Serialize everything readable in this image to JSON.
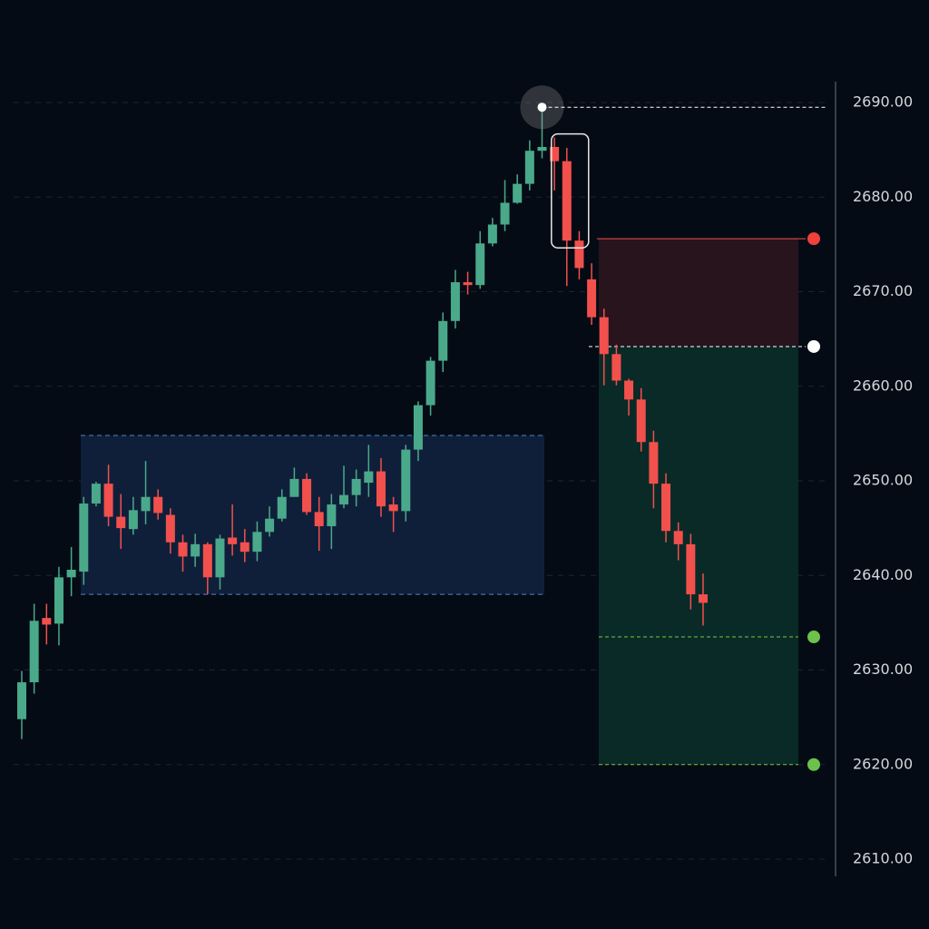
{
  "chart_data": {
    "type": "candlestick",
    "up_color": "#4aa98a",
    "down_color": "#f2504d",
    "open": [
      2624.8,
      2628.7,
      2635.5,
      2634.9,
      2639.8,
      2640.4,
      2647.6,
      2649.7,
      2646.2,
      2644.9,
      2646.8,
      2648.3,
      2646.4,
      2643.5,
      2642.0,
      2643.3,
      2639.8,
      2644.0,
      2643.5,
      2642.5,
      2644.6,
      2646.0,
      2648.3,
      2650.2,
      2646.7,
      2645.2,
      2647.5,
      2648.5,
      2649.8,
      2651.0,
      2647.5,
      2646.8,
      2653.3,
      2658.0,
      2662.7,
      2666.9,
      2671.0,
      2670.7,
      2675.1,
      2677.1,
      2679.4,
      2681.4,
      2684.9,
      2685.3,
      2683.8,
      2675.4,
      2671.3,
      2667.3,
      2663.4,
      2660.6,
      2658.6,
      2654.1,
      2649.7,
      2644.7,
      2643.3,
      2638.0
    ],
    "high": [
      2629.9,
      2637.0,
      2637.0,
      2640.9,
      2643.0,
      2648.3,
      2649.9,
      2651.7,
      2648.6,
      2648.3,
      2652.1,
      2649.1,
      2647.1,
      2644.3,
      2644.4,
      2643.5,
      2644.3,
      2647.5,
      2644.9,
      2645.7,
      2647.3,
      2649.1,
      2651.4,
      2650.8,
      2648.3,
      2648.6,
      2651.6,
      2651.2,
      2653.8,
      2652.4,
      2648.3,
      2653.8,
      2658.4,
      2663.1,
      2667.8,
      2672.3,
      2672.1,
      2676.4,
      2677.8,
      2681.8,
      2682.4,
      2686.0,
      2689.5,
      2686.3,
      2685.2,
      2676.4,
      2673.0,
      2668.2,
      2664.4,
      2660.8,
      2659.8,
      2655.3,
      2650.8,
      2645.6,
      2644.4,
      2640.2
    ],
    "low": [
      2622.7,
      2627.5,
      2632.7,
      2632.6,
      2637.8,
      2639.0,
      2647.3,
      2645.2,
      2642.8,
      2644.3,
      2645.4,
      2645.9,
      2642.3,
      2640.4,
      2640.9,
      2638.0,
      2638.5,
      2642.1,
      2641.4,
      2641.5,
      2644.1,
      2645.7,
      2648.3,
      2646.4,
      2642.6,
      2642.8,
      2647.1,
      2647.3,
      2648.3,
      2646.2,
      2644.6,
      2645.7,
      2652.1,
      2656.9,
      2661.5,
      2666.1,
      2669.7,
      2670.3,
      2674.8,
      2676.4,
      2679.3,
      2680.7,
      2684.1,
      2680.7,
      2670.6,
      2671.3,
      2666.5,
      2660.1,
      2660.1,
      2656.9,
      2653.1,
      2647.1,
      2643.5,
      2641.6,
      2636.4,
      2634.7
    ],
    "close": [
      2628.7,
      2635.2,
      2634.8,
      2639.8,
      2640.6,
      2647.6,
      2649.7,
      2646.2,
      2645.0,
      2646.9,
      2648.3,
      2646.6,
      2643.5,
      2642.0,
      2643.3,
      2639.8,
      2643.9,
      2643.3,
      2642.5,
      2644.6,
      2646.0,
      2648.3,
      2650.2,
      2646.7,
      2645.2,
      2647.5,
      2648.5,
      2650.2,
      2651.0,
      2647.3,
      2646.8,
      2653.3,
      2658.0,
      2662.7,
      2666.9,
      2671.0,
      2670.7,
      2675.1,
      2677.1,
      2679.4,
      2681.4,
      2684.9,
      2685.3,
      2683.8,
      2675.4,
      2672.5,
      2667.3,
      2663.4,
      2660.6,
      2658.6,
      2654.1,
      2649.7,
      2644.7,
      2643.3,
      2638.0,
      2637.1
    ],
    "ylim": [
      2690.48,
      2606.5
    ],
    "yticks": [
      {
        "value": 2690,
        "label": "2690.00"
      },
      {
        "value": 2680,
        "label": "2680.00"
      },
      {
        "value": 2670,
        "label": "2670.00"
      },
      {
        "value": 2660,
        "label": "2660.00"
      },
      {
        "value": 2650,
        "label": "2650.00"
      },
      {
        "value": 2640,
        "label": "2640.00"
      },
      {
        "value": 2630,
        "label": "2630.00"
      },
      {
        "value": 2620,
        "label": "2620.00"
      },
      {
        "value": 2610,
        "label": "2610.00"
      }
    ],
    "grid": true,
    "range_zone": {
      "top": 2654.8,
      "bottom": 2638.0
    },
    "peak": 2689.5,
    "levels": {
      "stop": 2675.6,
      "entry": 2664.2,
      "target_1": 2633.5,
      "target_2": 2620.0
    }
  }
}
